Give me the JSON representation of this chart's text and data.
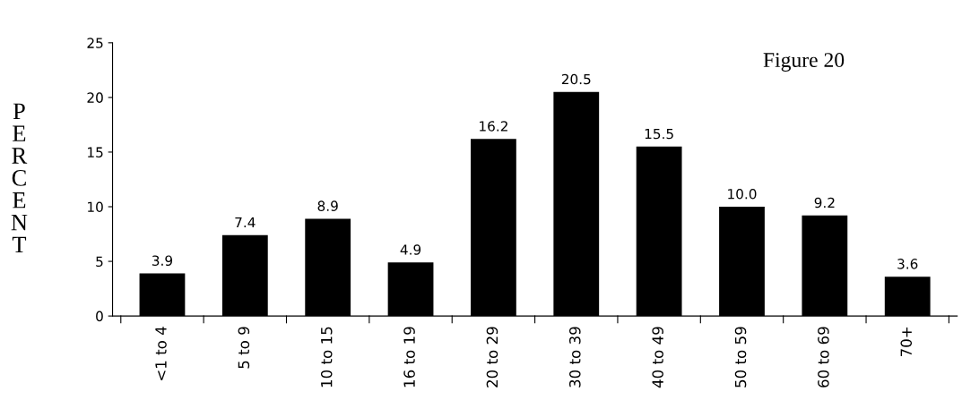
{
  "chart_data": {
    "type": "bar",
    "title": "Figure 20",
    "ylabel": "PERCENT",
    "categories": [
      "<1 to 4",
      "5 to 9",
      "10 to 15",
      "16 to 19",
      "20 to 29",
      "30 to 39",
      "40 to 49",
      "50 to 59",
      "60 to 69",
      "70+"
    ],
    "values": [
      3.9,
      7.4,
      8.9,
      4.9,
      16.2,
      20.5,
      15.5,
      10.0,
      9.2,
      3.6
    ],
    "value_labels": [
      "3.9",
      "7.4",
      "8.9",
      "4.9",
      "16.2",
      "20.5",
      "15.5",
      "10.0",
      "9.2",
      "3.6"
    ],
    "color": "#000000",
    "ylim": [
      0,
      25
    ],
    "yticks": [
      0,
      5,
      10,
      15,
      20,
      25
    ],
    "grid": false,
    "legend": false
  }
}
